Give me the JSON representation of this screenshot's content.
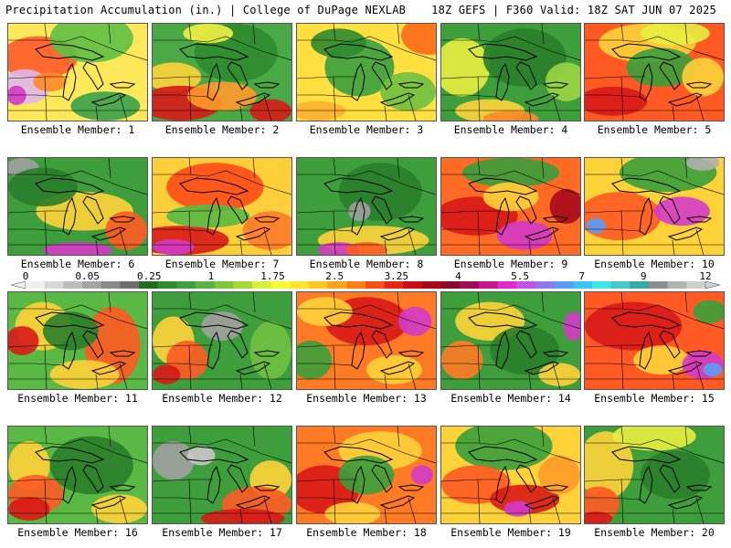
{
  "header": {
    "left": "Precipitation Accumulation (in.) | College of DuPage NEXLAB",
    "right": "18Z GEFS | F360 Valid: 18Z SAT JUN 07 2025"
  },
  "scale": {
    "labels": [
      "0",
      "0.05",
      "0.25",
      "1",
      "1.75",
      "2.5",
      "3.25",
      "4",
      "5.5",
      "7",
      "9",
      "12"
    ],
    "colors": [
      "#f0f0f0",
      "#d8d8d8",
      "#bdbdbd",
      "#a3a3a3",
      "#8a8a8a",
      "#6f6f6f",
      "#226c22",
      "#2e8b2e",
      "#3fa03f",
      "#55b445",
      "#7cc63a",
      "#a6d836",
      "#d8ee3a",
      "#fafa32",
      "#ffe32a",
      "#ffc621",
      "#ffa51d",
      "#ff7d17",
      "#f85214",
      "#e52612",
      "#cc0d13",
      "#a80a1c",
      "#8a0827",
      "#a10a55",
      "#c61691",
      "#e329c7",
      "#bf55e6",
      "#8f77ee",
      "#5a9df5",
      "#3cc3f5",
      "#3ee6e6",
      "#49c8c8",
      "#3aa8a8",
      "#8e8e8e",
      "#b3b3b3",
      "#d0d0d0"
    ]
  },
  "panels": [
    {
      "label": "Ensemble Member: 1",
      "base": "#ffe85a",
      "blobs": [
        [
          "#ff5a2a",
          0.22,
          0.35,
          0.28,
          0.22
        ],
        [
          "#e0b8ea",
          0.12,
          0.65,
          0.18,
          0.18
        ],
        [
          "#d43ac8",
          0.06,
          0.74,
          0.07,
          0.1
        ],
        [
          "#3aa04a",
          0.7,
          0.85,
          0.25,
          0.15
        ],
        [
          "#5fbf44",
          0.6,
          0.15,
          0.3,
          0.25
        ],
        [
          "#ff8a2a",
          0.3,
          0.6,
          0.12,
          0.1
        ]
      ]
    },
    {
      "label": "Ensemble Member: 2",
      "base": "#4aa845",
      "blobs": [
        [
          "#ffd23a",
          0.15,
          0.55,
          0.2,
          0.15
        ],
        [
          "#d81818",
          0.2,
          0.82,
          0.3,
          0.18
        ],
        [
          "#ff9a2a",
          0.5,
          0.75,
          0.25,
          0.15
        ],
        [
          "#2e8b2e",
          0.6,
          0.3,
          0.3,
          0.3
        ],
        [
          "#d81818",
          0.85,
          0.9,
          0.15,
          0.12
        ],
        [
          "#f0f040",
          0.4,
          0.1,
          0.18,
          0.1
        ]
      ]
    },
    {
      "label": "Ensemble Member: 3",
      "base": "#ffe040",
      "blobs": [
        [
          "#3aa040",
          0.45,
          0.45,
          0.25,
          0.3
        ],
        [
          "#ff6a1a",
          0.95,
          0.12,
          0.2,
          0.2
        ],
        [
          "#2e8b2e",
          0.3,
          0.2,
          0.2,
          0.15
        ],
        [
          "#ffb030",
          0.15,
          0.9,
          0.2,
          0.1
        ],
        [
          "#6fc040",
          0.8,
          0.7,
          0.2,
          0.2
        ]
      ]
    },
    {
      "label": "Ensemble Member: 4",
      "base": "#3e9e3c",
      "blobs": [
        [
          "#e8ee40",
          0.15,
          0.45,
          0.2,
          0.3
        ],
        [
          "#ffd23a",
          0.35,
          0.9,
          0.25,
          0.12
        ],
        [
          "#ff8a2a",
          0.5,
          0.98,
          0.2,
          0.08
        ],
        [
          "#2a7d2a",
          0.6,
          0.35,
          0.3,
          0.3
        ],
        [
          "#9ad444",
          0.9,
          0.6,
          0.15,
          0.2
        ]
      ]
    },
    {
      "label": "Ensemble Member: 5",
      "base": "#ff5a24",
      "blobs": [
        [
          "#ffd23a",
          0.45,
          0.2,
          0.35,
          0.2
        ],
        [
          "#3a9e3c",
          0.55,
          0.45,
          0.25,
          0.2
        ],
        [
          "#d81818",
          0.2,
          0.8,
          0.25,
          0.15
        ],
        [
          "#ffd23a",
          0.85,
          0.55,
          0.15,
          0.2
        ],
        [
          "#e8ee40",
          0.65,
          0.1,
          0.25,
          0.12
        ]
      ]
    },
    {
      "label": "Ensemble Member: 6",
      "base": "#3e9e3c",
      "blobs": [
        [
          "#ffd23a",
          0.55,
          0.55,
          0.35,
          0.2
        ],
        [
          "#d43ac8",
          0.5,
          0.95,
          0.25,
          0.08
        ],
        [
          "#ff5a24",
          0.85,
          0.75,
          0.15,
          0.2
        ],
        [
          "#a0a0a0",
          0.1,
          0.1,
          0.12,
          0.1
        ],
        [
          "#2a7d2a",
          0.25,
          0.3,
          0.25,
          0.2
        ]
      ]
    },
    {
      "label": "Ensemble Member: 7",
      "base": "#ffcf3a",
      "blobs": [
        [
          "#ff4a1a",
          0.45,
          0.3,
          0.35,
          0.25
        ],
        [
          "#d81818",
          0.2,
          0.85,
          0.35,
          0.15
        ],
        [
          "#d43ac8",
          0.15,
          0.92,
          0.15,
          0.08
        ],
        [
          "#5ab844",
          0.4,
          0.6,
          0.3,
          0.12
        ],
        [
          "#ff7a2a",
          0.85,
          0.75,
          0.2,
          0.2
        ]
      ]
    },
    {
      "label": "Ensemble Member: 8",
      "base": "#3e9e3c",
      "blobs": [
        [
          "#ffd23a",
          0.55,
          0.85,
          0.4,
          0.15
        ],
        [
          "#d43ac8",
          0.3,
          0.95,
          0.15,
          0.08
        ],
        [
          "#ff5a24",
          0.5,
          0.95,
          0.15,
          0.08
        ],
        [
          "#2a7d2a",
          0.6,
          0.35,
          0.3,
          0.3
        ],
        [
          "#a0a0a0",
          0.45,
          0.55,
          0.08,
          0.1
        ]
      ]
    },
    {
      "label": "Ensemble Member: 9",
      "base": "#ff6a24",
      "blobs": [
        [
          "#d81818",
          0.25,
          0.6,
          0.3,
          0.2
        ],
        [
          "#d43ac8",
          0.6,
          0.8,
          0.2,
          0.15
        ],
        [
          "#3a9e3c",
          0.5,
          0.15,
          0.35,
          0.15
        ],
        [
          "#ffd23a",
          0.5,
          0.4,
          0.2,
          0.15
        ],
        [
          "#a80a1c",
          0.9,
          0.5,
          0.12,
          0.18
        ]
      ]
    },
    {
      "label": "Ensemble Member: 10",
      "base": "#ffd23a",
      "blobs": [
        [
          "#ff5a24",
          0.25,
          0.6,
          0.3,
          0.25
        ],
        [
          "#d43ac8",
          0.7,
          0.55,
          0.2,
          0.15
        ],
        [
          "#5a9df5",
          0.08,
          0.7,
          0.07,
          0.08
        ],
        [
          "#3a9e3c",
          0.6,
          0.15,
          0.35,
          0.2
        ],
        [
          "#b0b0b0",
          0.85,
          0.05,
          0.12,
          0.08
        ]
      ]
    },
    {
      "label": "Ensemble Member: 11",
      "base": "#5ab844",
      "blobs": [
        [
          "#ff5a24",
          0.75,
          0.55,
          0.2,
          0.4
        ],
        [
          "#ffd23a",
          0.25,
          0.35,
          0.2,
          0.25
        ],
        [
          "#d81818",
          0.1,
          0.5,
          0.12,
          0.15
        ],
        [
          "#ffd23a",
          0.55,
          0.85,
          0.25,
          0.15
        ],
        [
          "#2a7d2a",
          0.45,
          0.4,
          0.2,
          0.2
        ]
      ]
    },
    {
      "label": "Ensemble Member: 12",
      "base": "#3e9e3c",
      "blobs": [
        [
          "#ffd23a",
          0.15,
          0.5,
          0.15,
          0.25
        ],
        [
          "#ff5a24",
          0.25,
          0.7,
          0.15,
          0.2
        ],
        [
          "#a0a0a0",
          0.5,
          0.35,
          0.15,
          0.15
        ],
        [
          "#d81818",
          0.1,
          0.85,
          0.1,
          0.1
        ],
        [
          "#6fc040",
          0.85,
          0.6,
          0.15,
          0.3
        ]
      ]
    },
    {
      "label": "Ensemble Member: 13",
      "base": "#ff7a24",
      "blobs": [
        [
          "#d81818",
          0.5,
          0.3,
          0.3,
          0.25
        ],
        [
          "#ffd23a",
          0.2,
          0.2,
          0.2,
          0.15
        ],
        [
          "#d43ac8",
          0.85,
          0.3,
          0.12,
          0.15
        ],
        [
          "#3a9e3c",
          0.1,
          0.7,
          0.15,
          0.2
        ],
        [
          "#ffd23a",
          0.7,
          0.8,
          0.2,
          0.15
        ]
      ]
    },
    {
      "label": "Ensemble Member: 14",
      "base": "#3e9e3c",
      "blobs": [
        [
          "#ffd23a",
          0.35,
          0.3,
          0.25,
          0.2
        ],
        [
          "#ff7a24",
          0.15,
          0.7,
          0.15,
          0.2
        ],
        [
          "#d43ac8",
          0.95,
          0.35,
          0.07,
          0.15
        ],
        [
          "#2a7d2a",
          0.6,
          0.6,
          0.25,
          0.25
        ],
        [
          "#ffd23a",
          0.85,
          0.85,
          0.15,
          0.12
        ]
      ]
    },
    {
      "label": "Ensemble Member: 15",
      "base": "#ff5a24",
      "blobs": [
        [
          "#d81818",
          0.35,
          0.35,
          0.35,
          0.25
        ],
        [
          "#ffd23a",
          0.55,
          0.7,
          0.2,
          0.15
        ],
        [
          "#d43ac8",
          0.85,
          0.75,
          0.15,
          0.15
        ],
        [
          "#5a9df5",
          0.92,
          0.8,
          0.07,
          0.07
        ],
        [
          "#3a9e3c",
          0.9,
          0.2,
          0.12,
          0.12
        ]
      ]
    },
    {
      "label": "Ensemble Member: 16",
      "base": "#5ab844",
      "blobs": [
        [
          "#ffd23a",
          0.15,
          0.4,
          0.15,
          0.25
        ],
        [
          "#ff5a24",
          0.2,
          0.7,
          0.2,
          0.2
        ],
        [
          "#d81818",
          0.15,
          0.85,
          0.15,
          0.12
        ],
        [
          "#2a7d2a",
          0.6,
          0.4,
          0.3,
          0.3
        ],
        [
          "#ffd23a",
          0.8,
          0.85,
          0.2,
          0.15
        ]
      ]
    },
    {
      "label": "Ensemble Member: 17",
      "base": "#3e9e3c",
      "blobs": [
        [
          "#a0a0a0",
          0.15,
          0.35,
          0.15,
          0.2
        ],
        [
          "#ffd23a",
          0.85,
          0.55,
          0.15,
          0.2
        ],
        [
          "#ff5a24",
          0.75,
          0.8,
          0.25,
          0.18
        ],
        [
          "#d81818",
          0.65,
          0.95,
          0.3,
          0.1
        ],
        [
          "#c8c8c8",
          0.35,
          0.3,
          0.1,
          0.1
        ]
      ]
    },
    {
      "label": "Ensemble Member: 18",
      "base": "#ff7a24",
      "blobs": [
        [
          "#d81818",
          0.2,
          0.65,
          0.25,
          0.25
        ],
        [
          "#ffd23a",
          0.6,
          0.25,
          0.3,
          0.2
        ],
        [
          "#3a9e3c",
          0.5,
          0.5,
          0.2,
          0.2
        ],
        [
          "#d43ac8",
          0.9,
          0.5,
          0.08,
          0.1
        ],
        [
          "#ffd23a",
          0.4,
          0.9,
          0.2,
          0.12
        ]
      ]
    },
    {
      "label": "Ensemble Member: 19",
      "base": "#ffd23a",
      "blobs": [
        [
          "#3a9e3c",
          0.45,
          0.2,
          0.35,
          0.25
        ],
        [
          "#ff5a24",
          0.25,
          0.6,
          0.25,
          0.2
        ],
        [
          "#d81818",
          0.6,
          0.75,
          0.25,
          0.15
        ],
        [
          "#d43ac8",
          0.55,
          0.85,
          0.1,
          0.08
        ],
        [
          "#ff9a2a",
          0.85,
          0.5,
          0.15,
          0.2
        ]
      ]
    },
    {
      "label": "Ensemble Member: 20",
      "base": "#3e9e3c",
      "blobs": [
        [
          "#ffd23a",
          0.15,
          0.4,
          0.2,
          0.35
        ],
        [
          "#ff5a24",
          0.1,
          0.8,
          0.15,
          0.18
        ],
        [
          "#d81818",
          0.08,
          0.95,
          0.12,
          0.07
        ],
        [
          "#e8ee40",
          0.5,
          0.1,
          0.3,
          0.15
        ],
        [
          "#2a7d2a",
          0.65,
          0.5,
          0.25,
          0.25
        ]
      ]
    }
  ]
}
